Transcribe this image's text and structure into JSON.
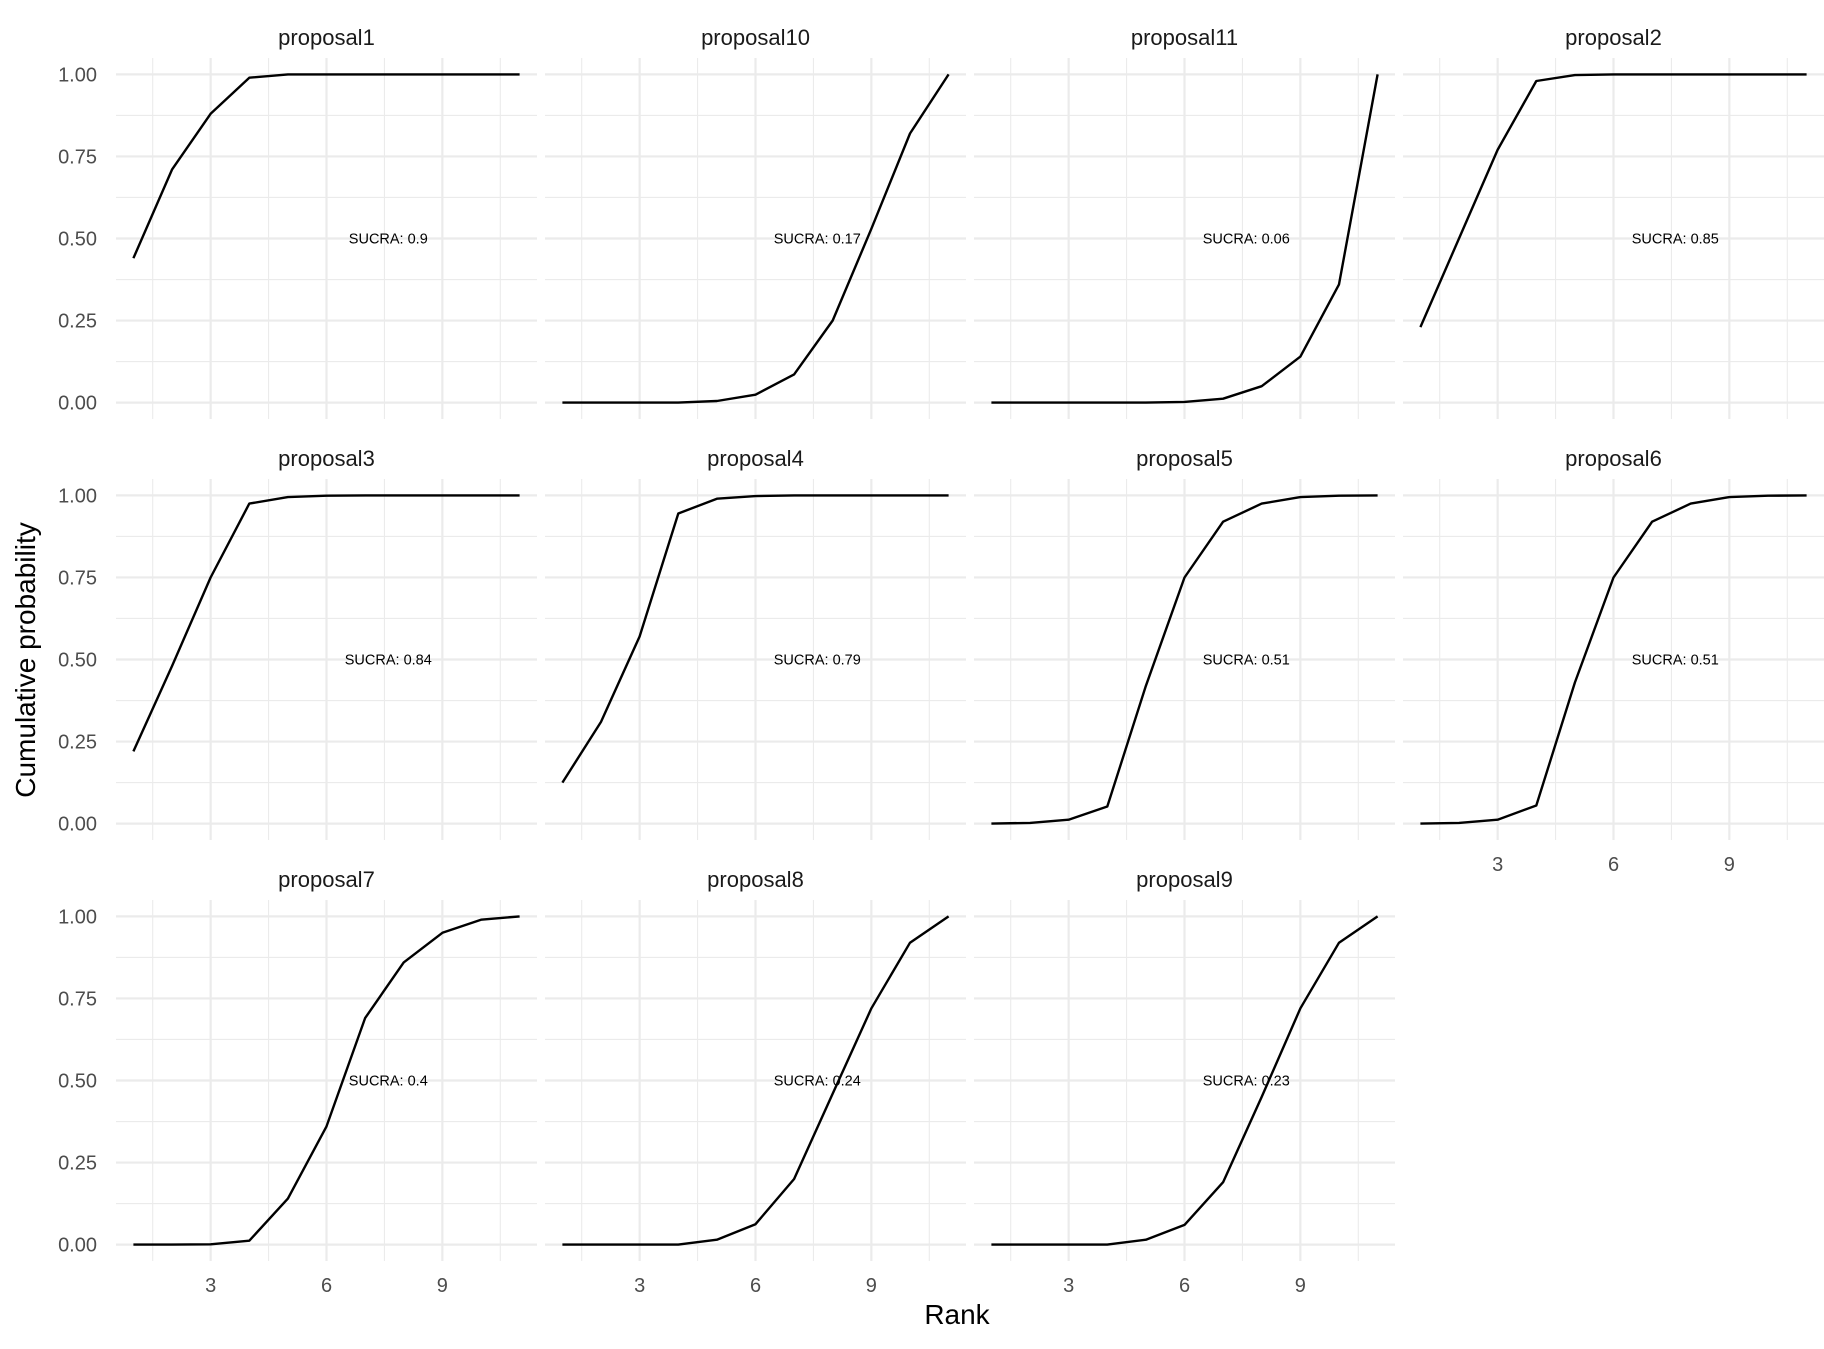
{
  "chart_data": {
    "type": "line",
    "xlabel": "Rank",
    "ylabel": "Cumulative probability",
    "xlim": [
      0.55,
      11.45
    ],
    "ylim": [
      -0.05,
      1.05
    ],
    "x_ticks": [
      3,
      6,
      9
    ],
    "y_ticks": [
      0.0,
      0.25,
      0.5,
      0.75,
      1.0
    ],
    "y_tick_labels": [
      "0.00",
      "0.25",
      "0.50",
      "0.75",
      "1.00"
    ],
    "grid": true,
    "x": [
      1,
      2,
      3,
      4,
      5,
      6,
      7,
      8,
      9,
      10,
      11
    ],
    "line_color": "#000000",
    "grid_color": "#ebebeb",
    "panels": [
      {
        "name": "proposal1",
        "sucra": "SUCRA: 0.9",
        "values": [
          0.44,
          0.71,
          0.88,
          0.99,
          1.0,
          1.0,
          1.0,
          1.0,
          1.0,
          1.0,
          1.0
        ]
      },
      {
        "name": "proposal10",
        "sucra": "SUCRA: 0.17",
        "values": [
          0.0,
          0.0,
          0.0,
          0.0,
          0.005,
          0.024,
          0.086,
          0.25,
          0.53,
          0.82,
          1.0
        ]
      },
      {
        "name": "proposal11",
        "sucra": "SUCRA: 0.06",
        "values": [
          0.0,
          0.0,
          0.0,
          0.0,
          0.0,
          0.002,
          0.012,
          0.05,
          0.14,
          0.36,
          1.0
        ]
      },
      {
        "name": "proposal2",
        "sucra": "SUCRA: 0.85",
        "values": [
          0.23,
          0.5,
          0.77,
          0.98,
          0.998,
          1.0,
          1.0,
          1.0,
          1.0,
          1.0,
          1.0
        ]
      },
      {
        "name": "proposal3",
        "sucra": "SUCRA: 0.84",
        "values": [
          0.22,
          0.48,
          0.75,
          0.975,
          0.995,
          0.999,
          1.0,
          1.0,
          1.0,
          1.0,
          1.0
        ]
      },
      {
        "name": "proposal4",
        "sucra": "SUCRA: 0.79",
        "values": [
          0.125,
          0.31,
          0.57,
          0.945,
          0.99,
          0.998,
          1.0,
          1.0,
          1.0,
          1.0,
          1.0
        ]
      },
      {
        "name": "proposal5",
        "sucra": "SUCRA: 0.51",
        "values": [
          0.0,
          0.002,
          0.012,
          0.052,
          0.42,
          0.75,
          0.92,
          0.975,
          0.995,
          0.999,
          1.0
        ]
      },
      {
        "name": "proposal6",
        "sucra": "SUCRA: 0.51",
        "values": [
          0.0,
          0.002,
          0.012,
          0.055,
          0.43,
          0.75,
          0.92,
          0.975,
          0.995,
          0.999,
          1.0
        ]
      },
      {
        "name": "proposal7",
        "sucra": "SUCRA: 0.4",
        "values": [
          0.0,
          0.0,
          0.001,
          0.012,
          0.14,
          0.36,
          0.69,
          0.86,
          0.95,
          0.99,
          1.0
        ]
      },
      {
        "name": "proposal8",
        "sucra": "SUCRA: 0.24",
        "values": [
          0.0,
          0.0,
          0.0,
          0.0,
          0.015,
          0.062,
          0.2,
          0.46,
          0.72,
          0.92,
          1.0
        ]
      },
      {
        "name": "proposal9",
        "sucra": "SUCRA: 0.23",
        "values": [
          0.0,
          0.0,
          0.0,
          0.0,
          0.015,
          0.06,
          0.19,
          0.45,
          0.72,
          0.92,
          1.0
        ]
      }
    ]
  }
}
